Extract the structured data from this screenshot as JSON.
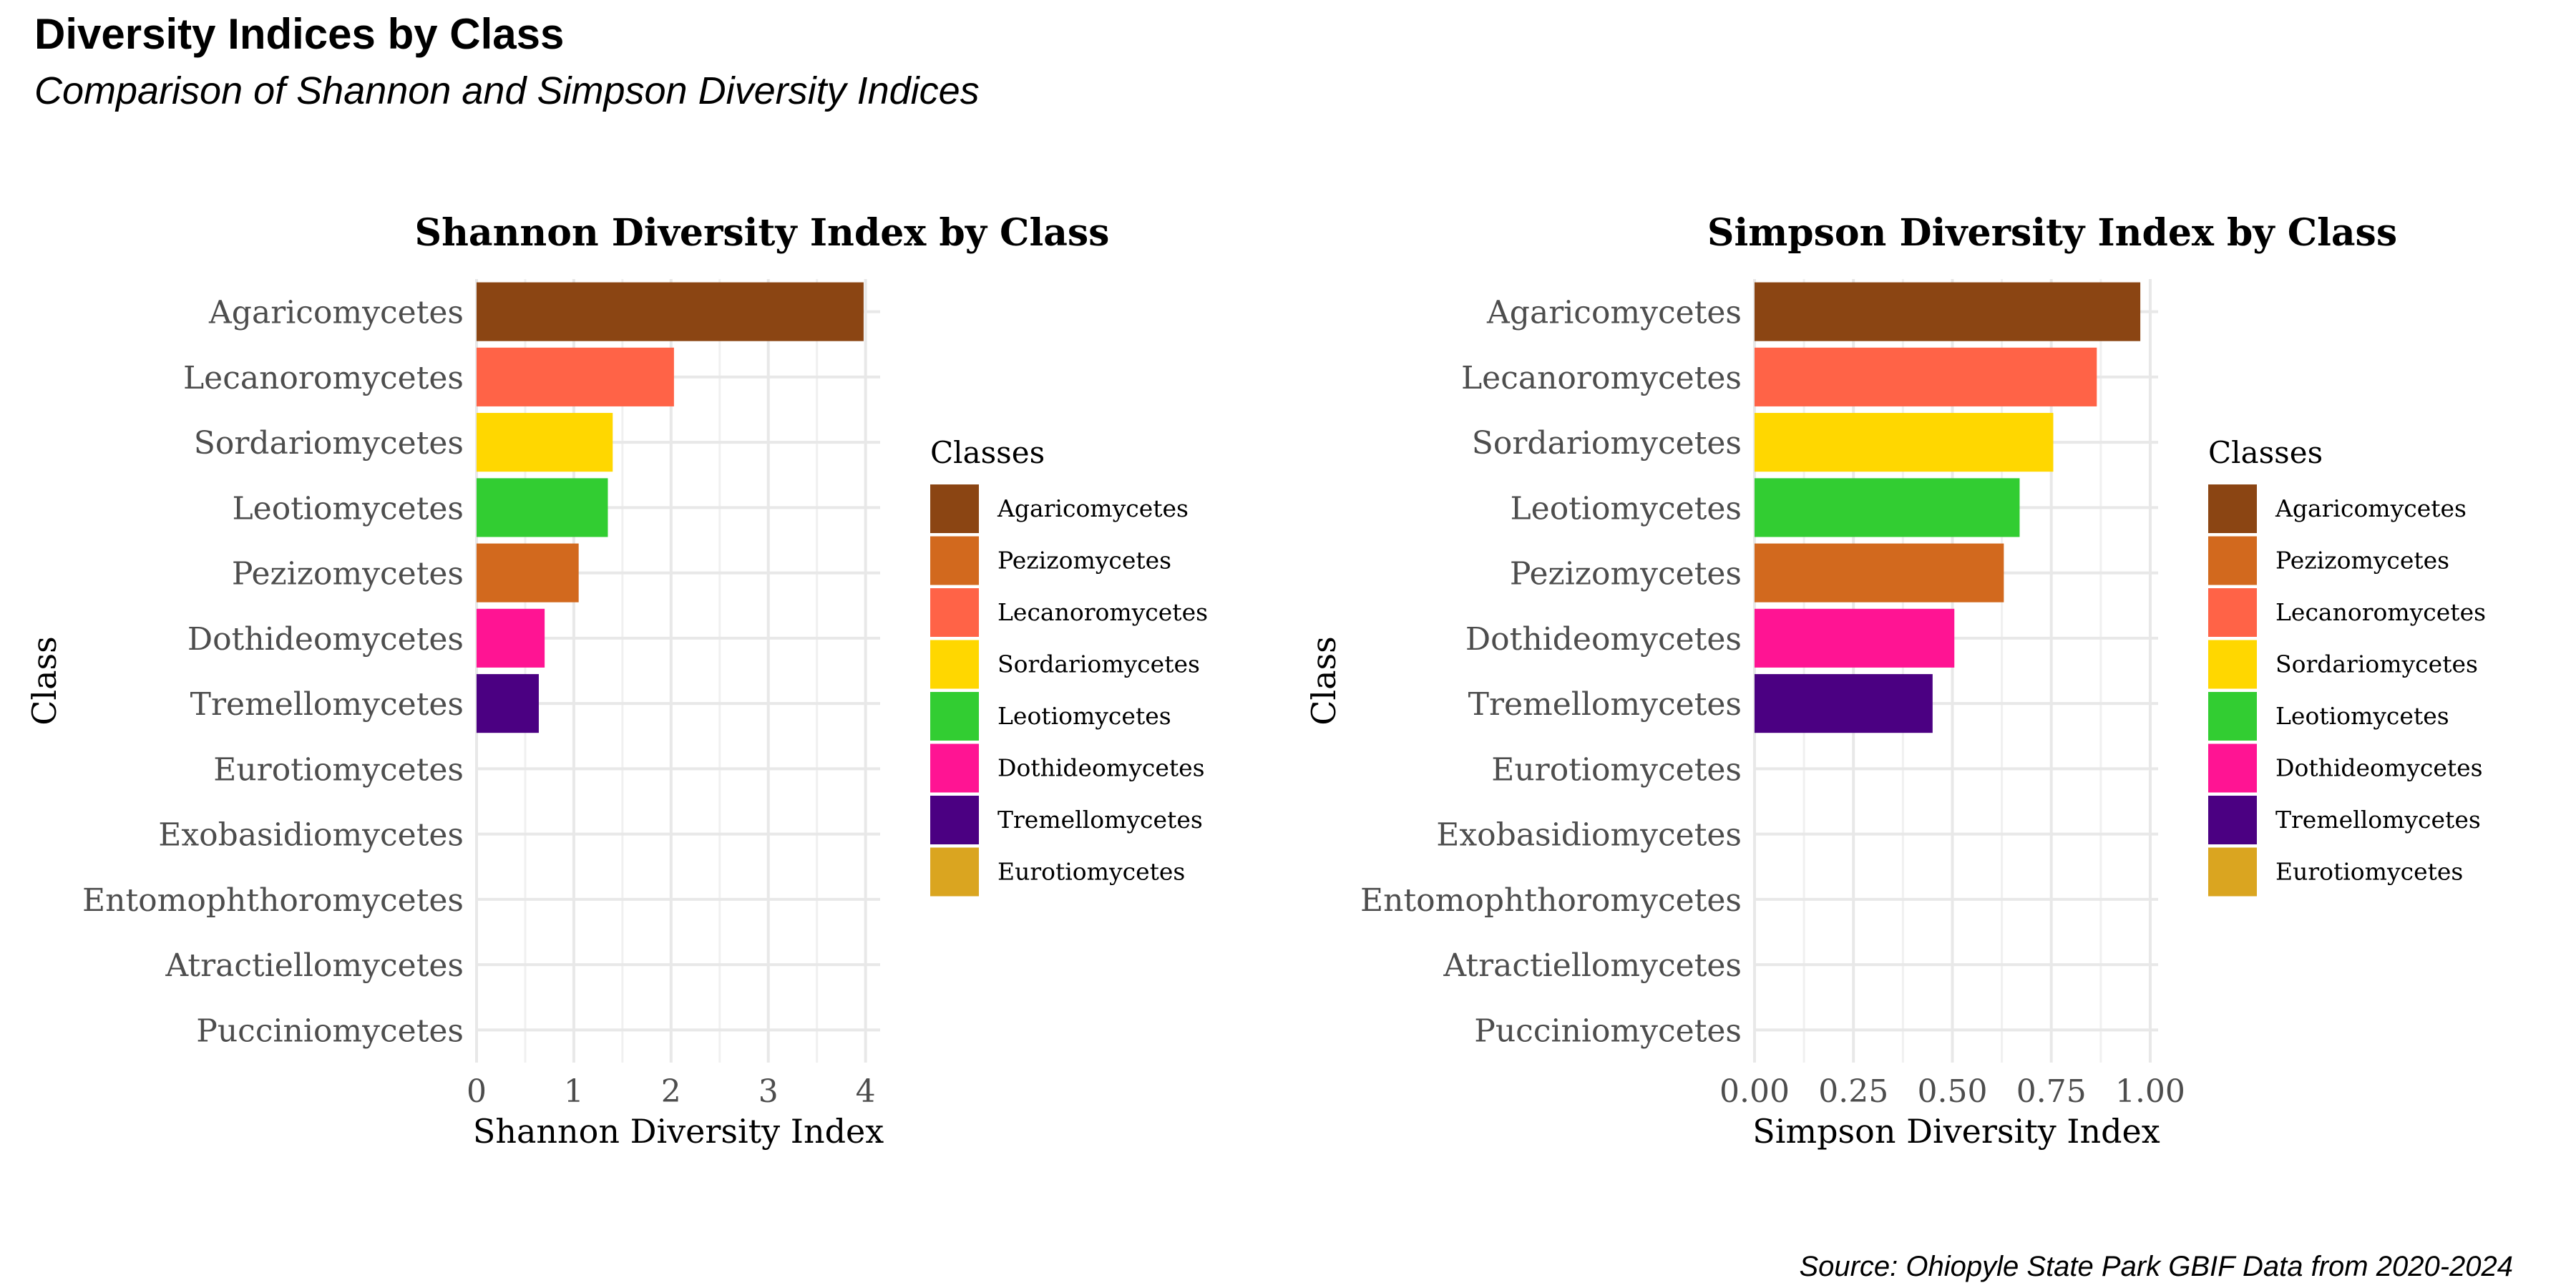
{
  "page": {
    "title": "Diversity Indices by Class",
    "subtitle": "Comparison of Shannon and Simpson Diversity Indices",
    "caption": "Source: Ohiopyle State Park GBIF Data from 2020-2024"
  },
  "legend": {
    "title": "Classes",
    "entries": [
      {
        "label": "Agaricomycetes",
        "color": "#8B4513"
      },
      {
        "label": "Pezizomycetes",
        "color": "#D2691E"
      },
      {
        "label": "Lecanoromycetes",
        "color": "#FF6347"
      },
      {
        "label": "Sordariomycetes",
        "color": "#FFD700"
      },
      {
        "label": "Leotiomycetes",
        "color": "#32CD32"
      },
      {
        "label": "Dothideomycetes",
        "color": "#FF1493"
      },
      {
        "label": "Tremellomycetes",
        "color": "#4B0082"
      },
      {
        "label": "Eurotiomycetes",
        "color": "#DAA520"
      }
    ]
  },
  "chart_data": [
    {
      "type": "bar",
      "orientation": "horizontal",
      "title": "Shannon Diversity Index by Class",
      "xlabel": "Shannon Diversity Index",
      "ylabel": "Class",
      "categories": [
        "Agaricomycetes",
        "Lecanoromycetes",
        "Sordariomycetes",
        "Leotiomycetes",
        "Pezizomycetes",
        "Dothideomycetes",
        "Tremellomycetes",
        "Eurotiomycetes",
        "Exobasidiomycetes",
        "Entomophthoromycetes",
        "Atractiellomycetes",
        "Pucciniomycetes"
      ],
      "values": [
        3.98,
        2.03,
        1.4,
        1.35,
        1.05,
        0.7,
        0.64,
        0,
        0,
        0,
        0,
        0
      ],
      "xlim": [
        0,
        4.15
      ],
      "ticks": [
        0,
        1,
        2,
        3,
        4
      ],
      "tick_labels": [
        "0",
        "1",
        "2",
        "3",
        "4"
      ],
      "grid": true,
      "legend": "right"
    },
    {
      "type": "bar",
      "orientation": "horizontal",
      "title": "Simpson Diversity Index by Class",
      "xlabel": "Simpson Diversity Index",
      "ylabel": "Class",
      "categories": [
        "Agaricomycetes",
        "Lecanoromycetes",
        "Sordariomycetes",
        "Leotiomycetes",
        "Pezizomycetes",
        "Dothideomycetes",
        "Tremellomycetes",
        "Eurotiomycetes",
        "Exobasidiomycetes",
        "Entomophthoromycetes",
        "Atractiellomycetes",
        "Pucciniomycetes"
      ],
      "values": [
        0.975,
        0.865,
        0.755,
        0.67,
        0.63,
        0.505,
        0.45,
        0,
        0,
        0,
        0,
        0
      ],
      "xlim": [
        0,
        1.02
      ],
      "ticks": [
        0,
        0.25,
        0.5,
        0.75,
        1.0
      ],
      "tick_labels": [
        "0.00",
        "0.25",
        "0.50",
        "0.75",
        "1.00"
      ],
      "grid": true,
      "legend": "right"
    }
  ]
}
